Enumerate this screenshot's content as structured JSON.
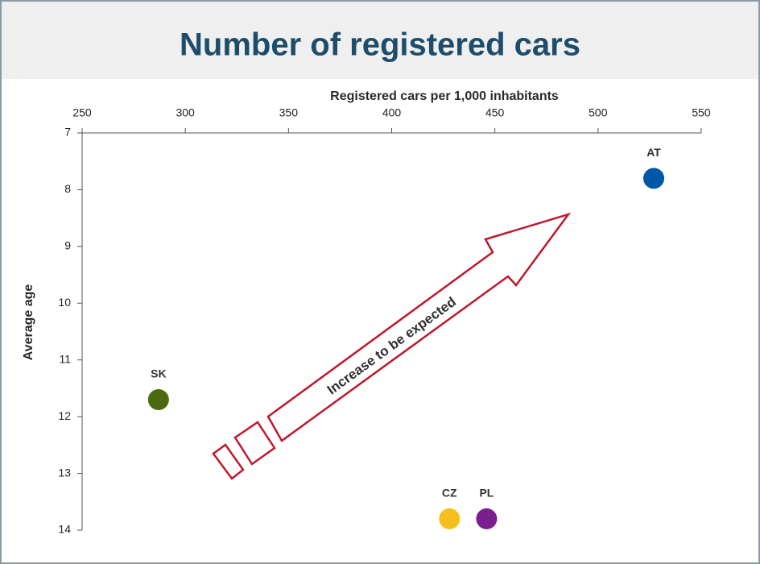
{
  "chart_data": {
    "type": "scatter",
    "title": "Number of registered cars",
    "x_label": "Registered cars per 1,000 inhabitants",
    "y_label": "Average age",
    "x_axis_position": "top",
    "y_inverted": true,
    "xlim": [
      250,
      550
    ],
    "xticks": [
      250,
      300,
      350,
      400,
      450,
      500,
      550
    ],
    "ylim": [
      7,
      14
    ],
    "yticks": [
      7,
      8,
      9,
      10,
      11,
      12,
      13,
      14
    ],
    "grid": false,
    "annotation": "Increase to be expected",
    "series": [
      {
        "name": "AT",
        "color": "#0057a8",
        "x": [
          527
        ],
        "values": [
          7.8
        ]
      },
      {
        "name": "SK",
        "color": "#4b6a10",
        "x": [
          287
        ],
        "values": [
          11.7
        ]
      },
      {
        "name": "CZ",
        "color": "#f6c01c",
        "x": [
          428
        ],
        "values": [
          13.8
        ]
      },
      {
        "name": "PL",
        "color": "#7a1f8e",
        "x": [
          446
        ],
        "values": [
          13.8
        ]
      }
    ]
  }
}
